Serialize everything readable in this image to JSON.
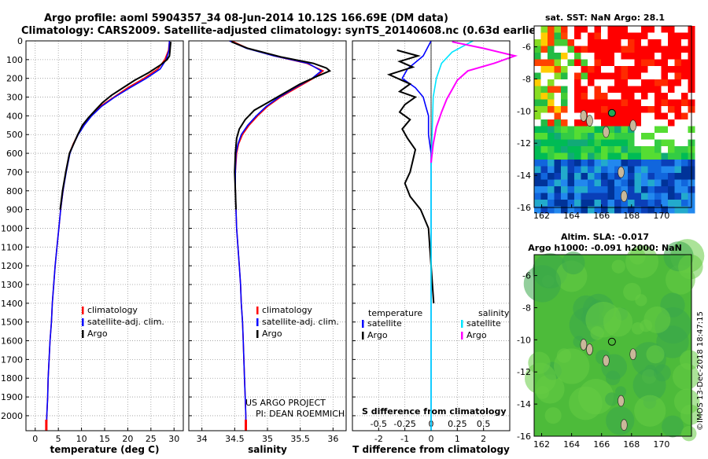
{
  "header": {
    "line1": "Argo profile: aoml 5904357_34 08-Jun-2014 10.12S 166.69E (DM data)",
    "line2": "Climatology: CARS2009. Satellite-adjusted climatology: synTS_20140608.nc (0.63d earlier)"
  },
  "colors": {
    "climatology": "#ff0000",
    "satellite": "#0000ff",
    "argo": "#000000",
    "sal_satellite": "#00e5ff",
    "sal_argo": "#ff00ff",
    "grid": "#9a9a9a"
  },
  "footer": {
    "project": "US ARGO PROJECT",
    "pi": "PI: DEAN ROEMMICH",
    "stamp": "©IMOS 13-Dec-2018 18:47:15"
  },
  "chart_data": [
    {
      "id": "temperature",
      "type": "line",
      "xlabel": "temperature (deg C)",
      "ylabel": "depth",
      "xlim": [
        -2,
        32
      ],
      "ylim": [
        0,
        2080
      ],
      "xticks": [
        "0",
        "5",
        "10",
        "15",
        "20",
        "25",
        "30"
      ],
      "xtick_values": [
        0,
        5,
        10,
        15,
        20,
        25,
        30
      ],
      "yticks": [
        "0",
        "100",
        "200",
        "300",
        "400",
        "500",
        "600",
        "700",
        "800",
        "900",
        "1000",
        "1100",
        "1200",
        "1300",
        "1400",
        "1500",
        "1600",
        "1700",
        "1800",
        "1900",
        "2000"
      ],
      "legend": [
        "climatology",
        "satellite-adj. clim.",
        "Argo"
      ],
      "series": [
        {
          "name": "climatology",
          "color": "#ff0000",
          "points": [
            [
              29.0,
              0
            ],
            [
              28.8,
              50
            ],
            [
              28.0,
              100
            ],
            [
              26.5,
              150
            ],
            [
              23.5,
              200
            ],
            [
              20.0,
              250
            ],
            [
              17.0,
              300
            ],
            [
              14.0,
              350
            ],
            [
              12.0,
              400
            ],
            [
              10.4,
              450
            ],
            [
              9.2,
              500
            ],
            [
              8.2,
              550
            ],
            [
              7.4,
              600
            ],
            [
              6.6,
              700
            ],
            [
              6.0,
              800
            ],
            [
              5.5,
              900
            ],
            [
              5.1,
              1000
            ],
            [
              4.7,
              1100
            ],
            [
              4.3,
              1200
            ],
            [
              4.0,
              1300
            ],
            [
              3.7,
              1400
            ],
            [
              3.5,
              1500
            ],
            [
              3.2,
              1600
            ],
            [
              3.0,
              1700
            ],
            [
              2.8,
              1800
            ],
            [
              2.7,
              1900
            ],
            [
              2.5,
              2000
            ],
            [
              2.4,
              2080
            ]
          ]
        },
        {
          "name": "satellite-adj. clim.",
          "color": "#0000ff",
          "points": [
            [
              29.0,
              0
            ],
            [
              28.9,
              50
            ],
            [
              28.3,
              100
            ],
            [
              27.0,
              150
            ],
            [
              24.0,
              200
            ],
            [
              20.5,
              250
            ],
            [
              17.2,
              300
            ],
            [
              14.3,
              350
            ],
            [
              12.2,
              400
            ],
            [
              10.6,
              450
            ],
            [
              9.3,
              500
            ],
            [
              8.3,
              550
            ],
            [
              7.5,
              600
            ],
            [
              6.7,
              700
            ],
            [
              6.0,
              800
            ],
            [
              5.5,
              900
            ],
            [
              5.1,
              1000
            ],
            [
              4.7,
              1100
            ],
            [
              4.3,
              1200
            ],
            [
              4.0,
              1300
            ],
            [
              3.7,
              1400
            ],
            [
              3.5,
              1500
            ],
            [
              3.2,
              1600
            ],
            [
              3.0,
              1700
            ],
            [
              2.8,
              1800
            ],
            [
              2.7,
              1900
            ],
            [
              2.5,
              2000
            ],
            [
              2.4,
              2080
            ]
          ]
        },
        {
          "name": "Argo",
          "color": "#000000",
          "points": [
            [
              29.3,
              5
            ],
            [
              29.2,
              30
            ],
            [
              29.1,
              60
            ],
            [
              29.0,
              80
            ],
            [
              28.5,
              100
            ],
            [
              27.0,
              130
            ],
            [
              24.5,
              170
            ],
            [
              21.5,
              210
            ],
            [
              19.0,
              250
            ],
            [
              16.5,
              290
            ],
            [
              14.5,
              330
            ],
            [
              13.0,
              370
            ],
            [
              11.5,
              410
            ],
            [
              10.2,
              450
            ],
            [
              9.2,
              500
            ],
            [
              8.3,
              550
            ],
            [
              7.4,
              600
            ],
            [
              6.6,
              700
            ],
            [
              5.9,
              800
            ],
            [
              5.4,
              900
            ]
          ]
        }
      ]
    },
    {
      "id": "salinity",
      "type": "line",
      "xlabel": "salinity",
      "xlim": [
        33.8,
        36.2
      ],
      "ylim": [
        0,
        2080
      ],
      "xticks": [
        "34",
        "34.5",
        "35",
        "35.5",
        "36"
      ],
      "xtick_values": [
        34,
        34.5,
        35,
        35.5,
        36
      ],
      "legend": [
        "climatology",
        "satellite-adj. clim.",
        "Argo"
      ],
      "series": [
        {
          "name": "climatology",
          "color": "#ff0000",
          "points": [
            [
              34.45,
              0
            ],
            [
              34.7,
              40
            ],
            [
              35.1,
              80
            ],
            [
              35.6,
              120
            ],
            [
              35.85,
              160
            ],
            [
              35.7,
              200
            ],
            [
              35.45,
              250
            ],
            [
              35.2,
              300
            ],
            [
              35.0,
              350
            ],
            [
              34.85,
              400
            ],
            [
              34.72,
              450
            ],
            [
              34.62,
              500
            ],
            [
              34.56,
              550
            ],
            [
              34.53,
              600
            ],
            [
              34.51,
              700
            ],
            [
              34.51,
              800
            ],
            [
              34.52,
              900
            ],
            [
              34.53,
              1000
            ],
            [
              34.55,
              1100
            ],
            [
              34.57,
              1200
            ],
            [
              34.59,
              1300
            ],
            [
              34.6,
              1400
            ],
            [
              34.62,
              1500
            ],
            [
              34.63,
              1600
            ],
            [
              34.64,
              1700
            ],
            [
              34.65,
              1800
            ],
            [
              34.66,
              1900
            ],
            [
              34.67,
              2000
            ],
            [
              34.67,
              2080
            ]
          ]
        },
        {
          "name": "satellite-adj. clim.",
          "color": "#0000ff",
          "points": [
            [
              34.42,
              0
            ],
            [
              34.68,
              40
            ],
            [
              35.1,
              80
            ],
            [
              35.62,
              120
            ],
            [
              35.82,
              160
            ],
            [
              35.68,
              200
            ],
            [
              35.42,
              250
            ],
            [
              35.18,
              300
            ],
            [
              34.98,
              350
            ],
            [
              34.83,
              400
            ],
            [
              34.7,
              450
            ],
            [
              34.6,
              500
            ],
            [
              34.55,
              550
            ],
            [
              34.52,
              600
            ],
            [
              34.51,
              700
            ],
            [
              34.51,
              800
            ],
            [
              34.52,
              900
            ],
            [
              34.53,
              1000
            ],
            [
              34.55,
              1100
            ],
            [
              34.57,
              1200
            ],
            [
              34.59,
              1300
            ],
            [
              34.6,
              1400
            ],
            [
              34.62,
              1500
            ],
            [
              34.63,
              1600
            ],
            [
              34.64,
              1700
            ],
            [
              34.65,
              1800
            ],
            [
              34.66,
              1900
            ],
            [
              34.67,
              2000
            ],
            [
              34.67,
              2080
            ]
          ]
        },
        {
          "name": "Argo",
          "color": "#000000",
          "points": [
            [
              34.45,
              5
            ],
            [
              34.7,
              40
            ],
            [
              35.2,
              85
            ],
            [
              35.7,
              120
            ],
            [
              35.9,
              145
            ],
            [
              35.95,
              160
            ],
            [
              35.75,
              190
            ],
            [
              35.5,
              230
            ],
            [
              35.25,
              280
            ],
            [
              35.0,
              330
            ],
            [
              34.8,
              370
            ],
            [
              34.66,
              420
            ],
            [
              34.57,
              470
            ],
            [
              34.53,
              520
            ],
            [
              34.51,
              600
            ],
            [
              34.5,
              700
            ],
            [
              34.51,
              800
            ],
            [
              34.52,
              900
            ]
          ]
        }
      ]
    },
    {
      "id": "difference",
      "type": "line",
      "xlabel": "T difference from climatology",
      "xlabel2": "S difference from climatology",
      "xlim": [
        -3,
        3
      ],
      "ylim": [
        0,
        2080
      ],
      "xticks": [
        "-2",
        "-1",
        "0",
        "1",
        "2"
      ],
      "xtick_values": [
        -2,
        -1,
        0,
        1,
        2
      ],
      "xticks2": [
        "-0.5",
        "-0.25",
        "0",
        "0.25",
        "0.5"
      ],
      "xtick2_values": [
        -0.5,
        -0.25,
        0,
        0.25,
        0.5
      ],
      "legend_left_title": "temperature",
      "legend_right_title": "salinity",
      "legend_left": [
        "satellite",
        "Argo"
      ],
      "legend_right": [
        "satellite",
        "Argo"
      ],
      "series": [
        {
          "name": "T satellite",
          "color": "#0000ff",
          "points": [
            [
              0.0,
              0
            ],
            [
              -0.3,
              80
            ],
            [
              -0.9,
              150
            ],
            [
              -1.1,
              200
            ],
            [
              -0.6,
              250
            ],
            [
              -0.3,
              300
            ],
            [
              -0.2,
              350
            ],
            [
              -0.1,
              400
            ],
            [
              -0.1,
              500
            ],
            [
              0.0,
              600
            ],
            [
              0.0,
              800
            ],
            [
              0.0,
              1000
            ],
            [
              0.0,
              1200
            ],
            [
              0.0,
              1400
            ],
            [
              0.0,
              1600
            ],
            [
              0.0,
              1800
            ],
            [
              0.0,
              2000
            ],
            [
              0.0,
              2080
            ]
          ]
        },
        {
          "name": "T Argo",
          "color": "#000000",
          "points": [
            [
              -1.3,
              50
            ],
            [
              -0.5,
              80
            ],
            [
              -1.2,
              110
            ],
            [
              -0.7,
              140
            ],
            [
              -1.6,
              180
            ],
            [
              -0.8,
              230
            ],
            [
              -1.2,
              270
            ],
            [
              -0.6,
              300
            ],
            [
              -1.0,
              340
            ],
            [
              -1.2,
              380
            ],
            [
              -0.8,
              420
            ],
            [
              -1.1,
              470
            ],
            [
              -0.9,
              520
            ],
            [
              -0.6,
              580
            ],
            [
              -0.7,
              640
            ],
            [
              -0.8,
              700
            ],
            [
              -1.0,
              760
            ],
            [
              -0.8,
              830
            ],
            [
              -0.4,
              900
            ],
            [
              -0.1,
              1000
            ],
            [
              0.0,
              1200
            ],
            [
              0.1,
              1400
            ]
          ]
        },
        {
          "name": "S satellite",
          "color": "#00e5ff",
          "points": [
            [
              0.4,
              0
            ],
            [
              0.2,
              60
            ],
            [
              0.1,
              120
            ],
            [
              0.05,
              200
            ],
            [
              0.02,
              300
            ],
            [
              0.01,
              500
            ],
            [
              0.0,
              700
            ],
            [
              0.0,
              1000
            ],
            [
              0.0,
              1400
            ],
            [
              0.0,
              1800
            ],
            [
              0.0,
              2080
            ]
          ]
        },
        {
          "name": "S Argo",
          "color": "#ff00ff",
          "points": [
            [
              0.2,
              5
            ],
            [
              0.5,
              40
            ],
            [
              0.8,
              80
            ],
            [
              0.6,
              120
            ],
            [
              0.35,
              160
            ],
            [
              0.25,
              210
            ],
            [
              0.2,
              260
            ],
            [
              0.15,
              310
            ],
            [
              0.1,
              380
            ],
            [
              0.05,
              460
            ],
            [
              0.02,
              550
            ],
            [
              0.0,
              650
            ]
          ]
        }
      ]
    }
  ],
  "maps": [
    {
      "id": "sst_map",
      "title": "sat. SST: NaN Argo: 28.1",
      "xticks": [
        "162",
        "164",
        "166",
        "168",
        "170"
      ],
      "xtick_values": [
        162,
        164,
        166,
        168,
        170
      ],
      "yticks": [
        "-6",
        "-8",
        "-10",
        "-12",
        "-14",
        "-16"
      ],
      "ytick_values": [
        -6,
        -8,
        -10,
        -12,
        -14,
        -16
      ],
      "lon_range": [
        161.5,
        172
      ],
      "lat_range": [
        -16,
        -4.7
      ],
      "argo_pos": [
        166.69,
        -10.12
      ]
    },
    {
      "id": "sla_map",
      "title": "Altim. SLA: -0.017",
      "title2": "Argo h1000: -0.091 h2000: NaN",
      "xticks": [
        "162",
        "164",
        "166",
        "168",
        "170"
      ],
      "xtick_values": [
        162,
        164,
        166,
        168,
        170
      ],
      "yticks": [
        "-6",
        "-8",
        "-10",
        "-12",
        "-14",
        "-16"
      ],
      "ytick_values": [
        -6,
        -8,
        -10,
        -12,
        -14,
        -16
      ],
      "lon_range": [
        161.5,
        172
      ],
      "lat_range": [
        -16,
        -4.7
      ],
      "argo_pos": [
        166.69,
        -10.12
      ]
    }
  ]
}
